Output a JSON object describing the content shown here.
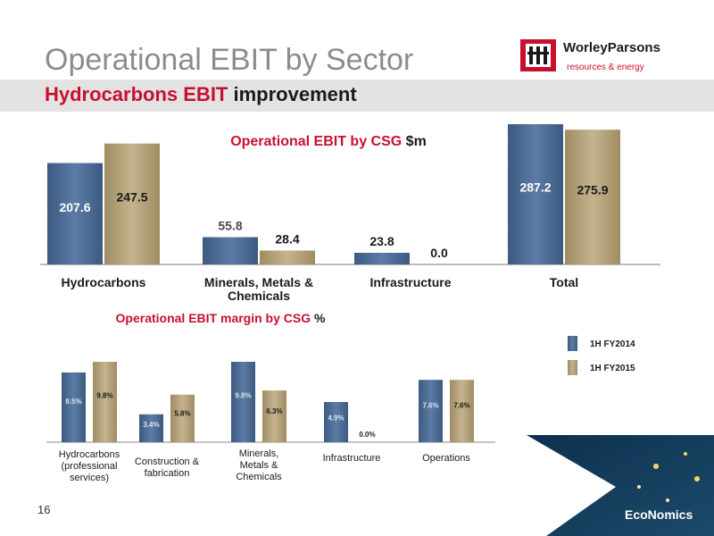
{
  "header": {
    "title": "Operational EBIT by Sector",
    "subtitle_red": "Hydrocarbons EBIT",
    "subtitle_dark": "improvement"
  },
  "logo": {
    "name": "WorleyParsons",
    "tagline": "resources & energy"
  },
  "footer": {
    "page_number": "16",
    "brand": "EcoNomics"
  },
  "colors": {
    "series1": "#4e6d94",
    "series2": "#b5a37b",
    "accent": "#c8102e"
  },
  "chart_data": [
    {
      "type": "bar",
      "title_red": "Operational EBIT by CSG",
      "title_unit": "$m",
      "categories": [
        "Hydrocarbons",
        "Minerals, Metals & Chemicals",
        "Infrastructure",
        "Total"
      ],
      "series": [
        {
          "name": "1H FY2014",
          "values": [
            207.6,
            55.8,
            23.8,
            287.2
          ],
          "labels": [
            "207.6",
            "55.8",
            "23.8",
            "287.2"
          ]
        },
        {
          "name": "1H FY2015",
          "values": [
            247.5,
            28.4,
            0.0,
            275.9
          ],
          "labels": [
            "247.5",
            "28.4",
            "0.0",
            "275.9"
          ]
        }
      ]
    },
    {
      "type": "bar",
      "title_red": "Operational EBIT margin by CSG",
      "title_unit": "%",
      "categories": [
        "Hydrocarbons (professional services)",
        "Construction & fabrication",
        "Minerals, Metals & Chemicals",
        "Infrastructure",
        "Operations"
      ],
      "series": [
        {
          "name": "1H FY2014",
          "values": [
            8.5,
            3.4,
            9.8,
            4.9,
            7.6
          ],
          "labels": [
            "8.5%",
            "3.4%",
            "9.8%",
            "4.9%",
            "7.6%"
          ]
        },
        {
          "name": "1H FY2015",
          "values": [
            9.8,
            5.8,
            6.3,
            0.0,
            7.6
          ],
          "labels": [
            "9.8%",
            "5.8%",
            "6.3%",
            "0.0%",
            "7.6%"
          ]
        }
      ],
      "legend": [
        "1H FY2014",
        "1H FY2015"
      ]
    }
  ]
}
